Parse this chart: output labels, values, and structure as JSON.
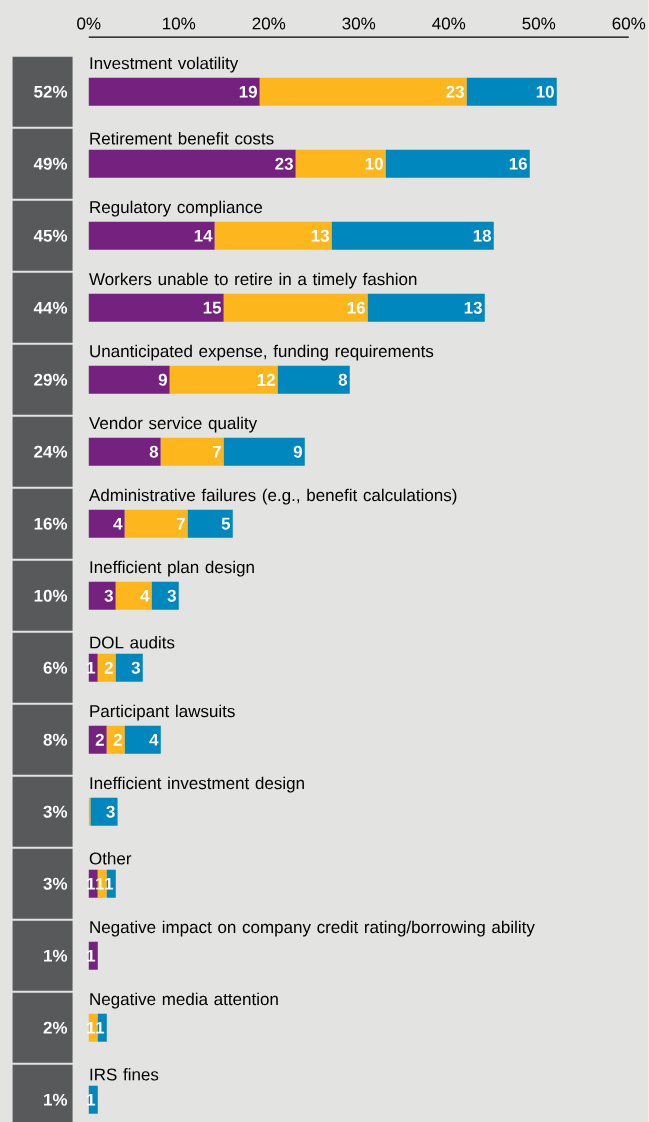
{
  "chart_data": {
    "type": "bar",
    "orientation": "horizontal",
    "stacked": true,
    "categories": [
      "Investment volatility",
      "Retirement benefit costs",
      "Regulatory compliance",
      "Workers unable to retire in a timely fashion",
      "Unanticipated expense, funding requirements",
      "Vendor service quality",
      "Administrative failures (e.g., benefit calculations)",
      "Inefficient plan design",
      "DOL audits",
      "Participant lawsuits",
      "Inefficient investment design",
      "Other",
      "Negative impact on company credit rating/borrowing ability",
      "Negative media attention",
      "IRS fines"
    ],
    "series": [
      {
        "color": "#74217f",
        "values": [
          19,
          23,
          14,
          15,
          9,
          8,
          4,
          3,
          1,
          2,
          null,
          1,
          1,
          null,
          null
        ],
        "value_labels": [
          "19",
          "23",
          "14",
          "15",
          "9",
          "8",
          "4",
          "3",
          "1",
          "2",
          null,
          "1",
          "1",
          null,
          null
        ]
      },
      {
        "color": "#fdb71c",
        "values": [
          23,
          10,
          13,
          16,
          12,
          7,
          7,
          4,
          2,
          2,
          0.2,
          1,
          null,
          1,
          null
        ],
        "value_labels": [
          "23",
          "10",
          "13",
          "16",
          "12",
          "7",
          "7",
          "4",
          "2",
          "2",
          null,
          "1",
          null,
          "1",
          null
        ]
      },
      {
        "color": "#0087bd",
        "values": [
          10,
          16,
          18,
          13,
          8,
          9,
          5,
          3,
          3,
          4,
          3,
          1,
          null,
          1,
          1
        ],
        "value_labels": [
          "10",
          "16",
          "18",
          "13",
          "8",
          "9",
          "5",
          "3",
          "3",
          "4",
          "3",
          "1",
          null,
          "1",
          "1"
        ]
      }
    ],
    "totals": [
      "52%",
      "49%",
      "45%",
      "44%",
      "29%",
      "24%",
      "16%",
      "10%",
      "6%",
      "8%",
      "3%",
      "3%",
      "1%",
      "2%",
      "1%"
    ],
    "xlim": [
      0,
      60
    ],
    "xticks": [
      {
        "value": 0,
        "label": "0%"
      },
      {
        "value": 10,
        "label": "10%"
      },
      {
        "value": 20,
        "label": "20%"
      },
      {
        "value": 30,
        "label": "30%"
      },
      {
        "value": 40,
        "label": "40%"
      },
      {
        "value": 50,
        "label": "50%"
      },
      {
        "value": 60,
        "label": "60%"
      }
    ]
  }
}
